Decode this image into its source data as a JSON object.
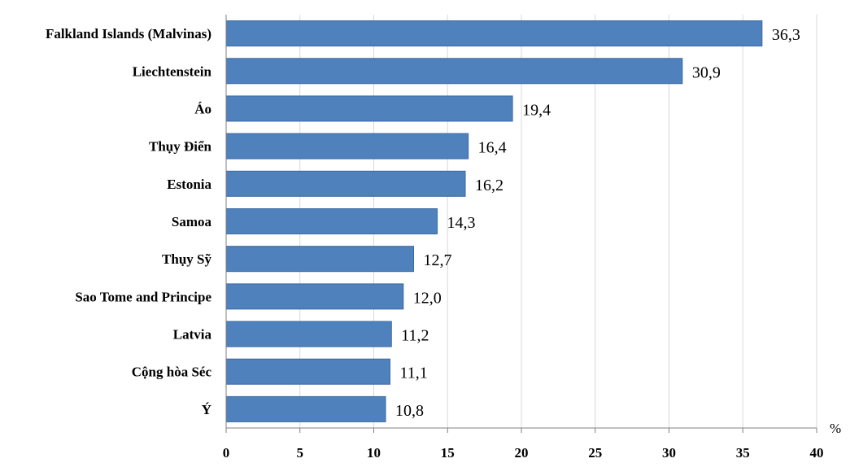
{
  "chart_data": {
    "type": "bar",
    "orientation": "horizontal",
    "categories": [
      "Falkland Islands (Malvinas)",
      "Liechtenstein",
      "Áo",
      "Thụy Điển",
      "Estonia",
      "Samoa",
      "Thụy Sỹ",
      "Sao Tome and Principe",
      "Latvia",
      "Cộng hòa Séc",
      "Ý"
    ],
    "values": [
      36.3,
      30.9,
      19.4,
      16.4,
      16.2,
      14.3,
      12.7,
      12.0,
      11.2,
      11.1,
      10.8
    ],
    "value_labels": [
      "36,3",
      "30,9",
      "19,4",
      "16,4",
      "16,2",
      "14,3",
      "12,7",
      "12,0",
      "11,2",
      "11,1",
      "10,8"
    ],
    "xlim": [
      0,
      40
    ],
    "x_ticks": [
      "0",
      "5",
      "10",
      "15",
      "20",
      "25",
      "30",
      "35",
      "40"
    ],
    "x_unit": "%",
    "grid": "vertical",
    "bar_color": "#4f81bd"
  }
}
